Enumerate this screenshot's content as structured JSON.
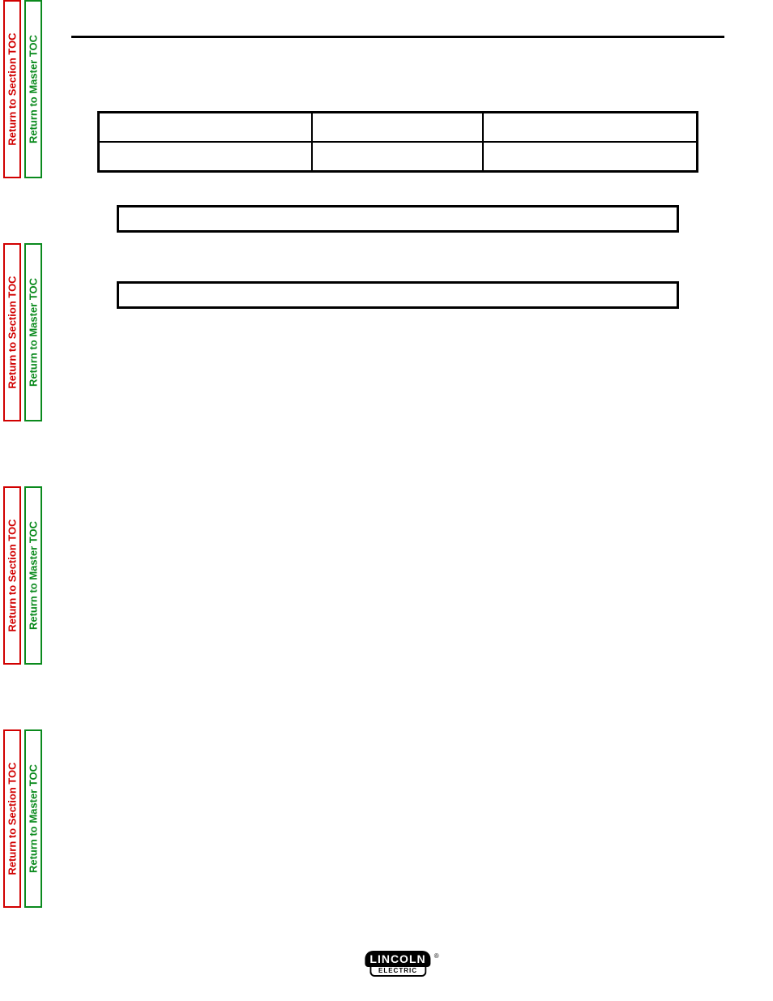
{
  "sideTabs": {
    "red": {
      "label": "Return to Section TOC",
      "border": "#d10000",
      "text": "#d10000"
    },
    "green": {
      "label": "Return to Master TOC",
      "border": "#0a8a1d",
      "text": "#0a8a1d"
    }
  },
  "layout": {
    "ruleColor": "#000000",
    "tableBorder": "#000000",
    "background": "#ffffff",
    "pageWidth": 954,
    "pageHeight": 1235
  },
  "table1": {
    "rows": 2,
    "cols": 3,
    "colWidthsPct": [
      33.3,
      33.3,
      33.4
    ],
    "cells": [
      [
        "",
        "",
        ""
      ],
      [
        "",
        "",
        ""
      ]
    ]
  },
  "strip1": {
    "text": ""
  },
  "strip2": {
    "text": ""
  },
  "logo": {
    "top": "LINCOLN",
    "bottom": "ELECTRIC",
    "registered": "®"
  }
}
